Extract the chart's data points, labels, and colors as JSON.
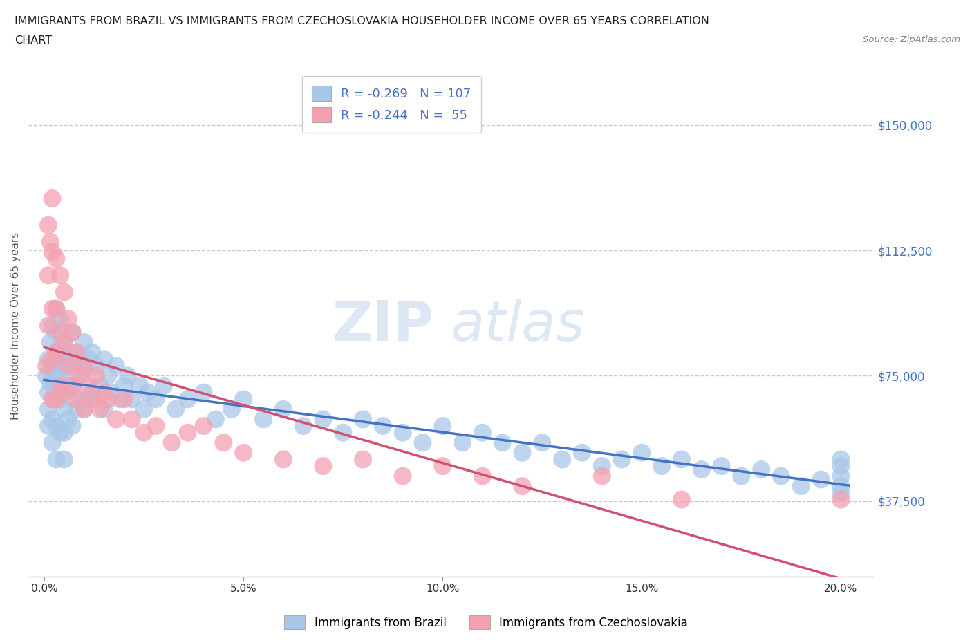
{
  "title_line1": "IMMIGRANTS FROM BRAZIL VS IMMIGRANTS FROM CZECHOSLOVAKIA HOUSEHOLDER INCOME OVER 65 YEARS CORRELATION",
  "title_line2": "CHART",
  "source": "Source: ZipAtlas.com",
  "ylabel": "Householder Income Over 65 years",
  "xlabel_ticks": [
    "0.0%",
    "5.0%",
    "10.0%",
    "15.0%",
    "20.0%"
  ],
  "xlabel_vals": [
    0.0,
    0.05,
    0.1,
    0.15,
    0.2
  ],
  "ytick_labels": [
    "$37,500",
    "$75,000",
    "$112,500",
    "$150,000"
  ],
  "ytick_vals": [
    37500,
    75000,
    112500,
    150000
  ],
  "xlim": [
    -0.004,
    0.208
  ],
  "ylim": [
    15000,
    165000
  ],
  "brazil_color": "#a8c8e8",
  "brazil_line_color": "#4472c4",
  "czech_color": "#f4a0b0",
  "czech_line_color": "#d05070",
  "brazil_R": "-0.269",
  "brazil_N": "107",
  "czech_R": "-0.244",
  "czech_N": "55",
  "watermark_zip": "ZIP",
  "watermark_atlas": "atlas",
  "brazil_scatter_x": [
    0.0005,
    0.001,
    0.001,
    0.001,
    0.001,
    0.0015,
    0.0015,
    0.002,
    0.002,
    0.002,
    0.002,
    0.002,
    0.0025,
    0.003,
    0.003,
    0.003,
    0.003,
    0.003,
    0.003,
    0.003,
    0.0035,
    0.004,
    0.004,
    0.004,
    0.004,
    0.004,
    0.005,
    0.005,
    0.005,
    0.005,
    0.005,
    0.005,
    0.006,
    0.006,
    0.006,
    0.007,
    0.007,
    0.007,
    0.007,
    0.008,
    0.008,
    0.008,
    0.009,
    0.009,
    0.01,
    0.01,
    0.01,
    0.011,
    0.011,
    0.012,
    0.012,
    0.013,
    0.014,
    0.015,
    0.015,
    0.016,
    0.017,
    0.018,
    0.019,
    0.02,
    0.021,
    0.022,
    0.024,
    0.025,
    0.026,
    0.028,
    0.03,
    0.033,
    0.036,
    0.04,
    0.043,
    0.047,
    0.05,
    0.055,
    0.06,
    0.065,
    0.07,
    0.075,
    0.08,
    0.085,
    0.09,
    0.095,
    0.1,
    0.105,
    0.11,
    0.115,
    0.12,
    0.125,
    0.13,
    0.135,
    0.14,
    0.145,
    0.15,
    0.155,
    0.16,
    0.165,
    0.17,
    0.175,
    0.18,
    0.185,
    0.19,
    0.195,
    0.2,
    0.2,
    0.2,
    0.2,
    0.2
  ],
  "brazil_scatter_y": [
    75000,
    80000,
    70000,
    65000,
    60000,
    85000,
    73000,
    90000,
    78000,
    68000,
    62000,
    55000,
    72000,
    95000,
    88000,
    80000,
    75000,
    68000,
    60000,
    50000,
    83000,
    92000,
    82000,
    75000,
    68000,
    58000,
    85000,
    78000,
    72000,
    65000,
    58000,
    50000,
    80000,
    72000,
    62000,
    88000,
    80000,
    72000,
    60000,
    82000,
    75000,
    65000,
    78000,
    68000,
    85000,
    77000,
    65000,
    80000,
    68000,
    82000,
    70000,
    78000,
    72000,
    80000,
    65000,
    75000,
    70000,
    78000,
    68000,
    72000,
    75000,
    68000,
    72000,
    65000,
    70000,
    68000,
    72000,
    65000,
    68000,
    70000,
    62000,
    65000,
    68000,
    62000,
    65000,
    60000,
    62000,
    58000,
    62000,
    60000,
    58000,
    55000,
    60000,
    55000,
    58000,
    55000,
    52000,
    55000,
    50000,
    52000,
    48000,
    50000,
    52000,
    48000,
    50000,
    47000,
    48000,
    45000,
    47000,
    45000,
    42000,
    44000,
    50000,
    48000,
    45000,
    42000,
    40000
  ],
  "czech_scatter_x": [
    0.0005,
    0.001,
    0.001,
    0.001,
    0.0015,
    0.002,
    0.002,
    0.002,
    0.002,
    0.002,
    0.003,
    0.003,
    0.003,
    0.003,
    0.004,
    0.004,
    0.004,
    0.005,
    0.005,
    0.005,
    0.006,
    0.006,
    0.007,
    0.007,
    0.008,
    0.008,
    0.009,
    0.01,
    0.01,
    0.011,
    0.012,
    0.013,
    0.014,
    0.015,
    0.016,
    0.018,
    0.02,
    0.022,
    0.025,
    0.028,
    0.032,
    0.036,
    0.04,
    0.045,
    0.05,
    0.06,
    0.07,
    0.08,
    0.09,
    0.1,
    0.11,
    0.12,
    0.14,
    0.16,
    0.2
  ],
  "czech_scatter_y": [
    78000,
    120000,
    105000,
    90000,
    115000,
    128000,
    112000,
    95000,
    80000,
    68000,
    110000,
    95000,
    82000,
    68000,
    105000,
    88000,
    72000,
    100000,
    85000,
    70000,
    92000,
    78000,
    88000,
    72000,
    82000,
    68000,
    75000,
    78000,
    65000,
    72000,
    68000,
    75000,
    65000,
    70000,
    68000,
    62000,
    68000,
    62000,
    58000,
    60000,
    55000,
    58000,
    60000,
    55000,
    52000,
    50000,
    48000,
    50000,
    45000,
    48000,
    45000,
    42000,
    45000,
    38000,
    38000
  ]
}
